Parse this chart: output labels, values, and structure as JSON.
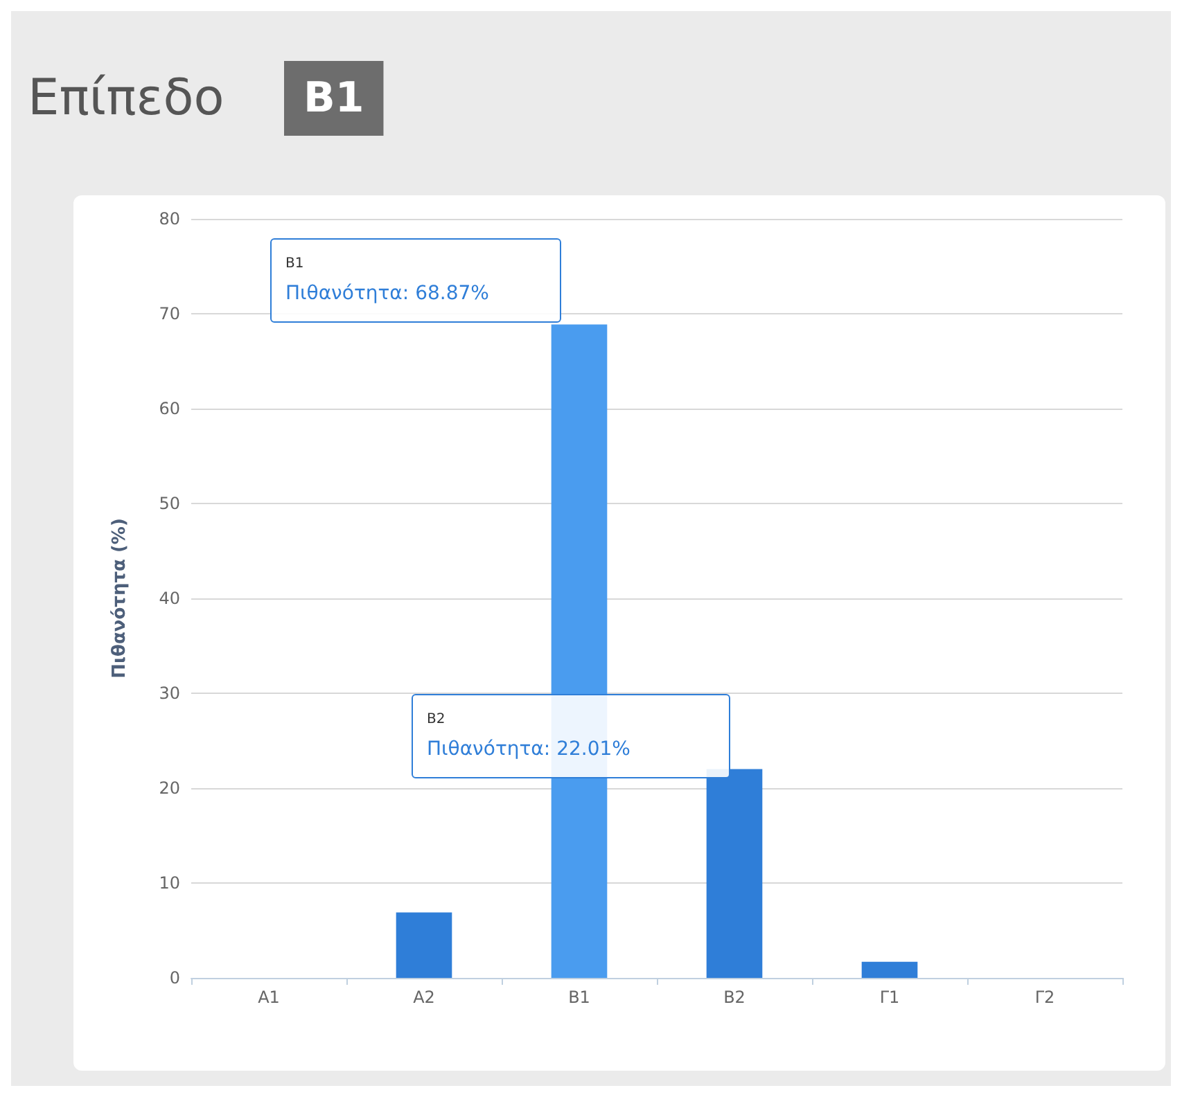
{
  "chart_data": {
    "type": "bar",
    "title": "Επίπεδο",
    "subtitle": "B1",
    "ylabel": "Πιθανότητα (%)",
    "categories": [
      "A1",
      "A2",
      "B1",
      "B2",
      "Γ1",
      "Γ2"
    ],
    "values": [
      0,
      6.9,
      68.87,
      22.01,
      1.7,
      0
    ],
    "colors": [
      "#2f7ed8",
      "#2f7ed8",
      "#4a9cef",
      "#2f7ed8",
      "#2f7ed8",
      "#2f7ed8"
    ],
    "ylim": [
      0,
      80
    ],
    "yticks": [
      0,
      10,
      20,
      30,
      40,
      50,
      60,
      70,
      80
    ],
    "grid": "y",
    "annotations": [
      "B1\nΠιθανότητα: 68.87%",
      "B2\nΠιθανότητα: 22.01%"
    ]
  }
}
